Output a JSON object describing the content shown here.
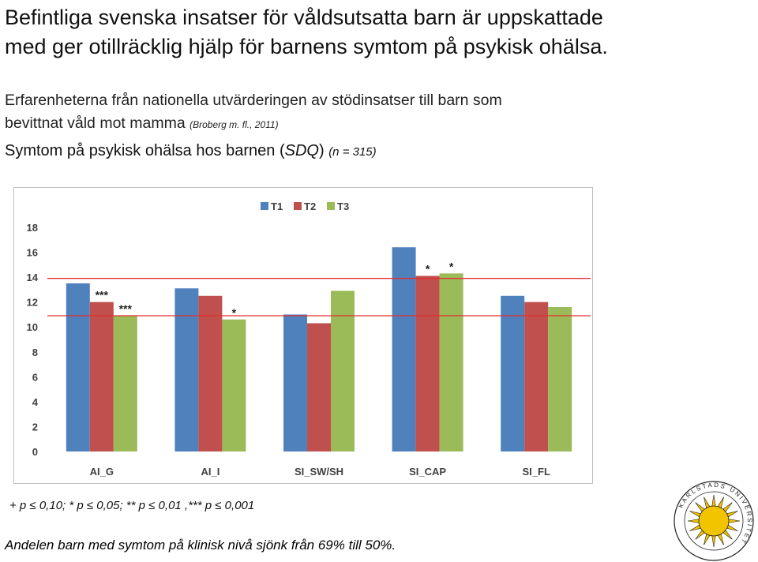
{
  "page": {
    "title_line1": "Befintliga svenska insatser för våldsutsatta barn är uppskattade",
    "title_line2": "med ger otillräcklig hjälp för barnens symtom på psykisk ohälsa.",
    "subtitle_line1": "Erfarenheterna från nationella utvärderingen av stödinsatser till barn som",
    "subtitle_line2": "bevittnat våld mot mamma",
    "citation": "(Broberg m. fl., 2011)",
    "heading_main": "Symtom på psykisk ohälsa hos barnen (",
    "heading_sdq": "SDQ",
    "heading_close": ")",
    "heading_n": "(n = 315)",
    "footnote": "+ p ≤ 0,10; * p ≤ 0,05; ** p ≤ 0,01 ,*** p ≤ 0,001",
    "bottom_note": "Andelen barn med symtom på klinisk nivå sjönk från 69% till 50%.",
    "logo_text": "KARLSTADS UNIVERSITET"
  },
  "colors": {
    "T1": "#4f81bd",
    "T2": "#c0504d",
    "T3": "#9bbb59",
    "reference_line": "#e03030",
    "logo_sun": "#f2c400"
  },
  "chart_data": {
    "type": "bar",
    "categories": [
      "AI_G",
      "AI_I",
      "SI_SW/SH",
      "SI_CAP",
      "SI_FL"
    ],
    "series": [
      {
        "name": "T1",
        "values": [
          13.5,
          13.1,
          11.0,
          16.4,
          12.5
        ]
      },
      {
        "name": "T2",
        "values": [
          12.0,
          12.5,
          10.3,
          14.1,
          12.0
        ]
      },
      {
        "name": "T3",
        "values": [
          10.9,
          10.6,
          12.9,
          14.3,
          11.6
        ]
      }
    ],
    "significance": [
      {
        "category": "AI_G",
        "series": "T2",
        "label": "***"
      },
      {
        "category": "AI_G",
        "series": "T3",
        "label": "***"
      },
      {
        "category": "AI_I",
        "series": "T3",
        "label": "*"
      },
      {
        "category": "SI_CAP",
        "series": "T2",
        "label": "*"
      },
      {
        "category": "SI_CAP",
        "series": "T3",
        "label": "*"
      }
    ],
    "reference_lines": [
      {
        "value": 13.9
      },
      {
        "value": 10.9
      }
    ],
    "ylim": [
      0,
      18
    ],
    "yticks": [
      0,
      2,
      4,
      6,
      8,
      10,
      12,
      14,
      16,
      18
    ],
    "legend_position": "top",
    "grid": false,
    "title": "",
    "xlabel": "",
    "ylabel": ""
  }
}
